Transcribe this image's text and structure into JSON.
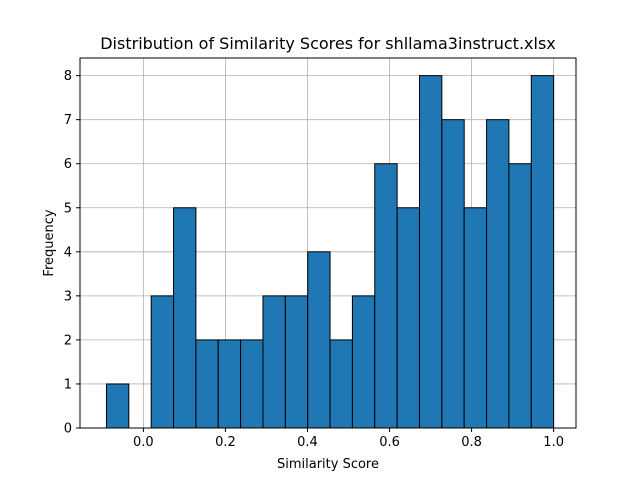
{
  "chart_data": {
    "type": "bar",
    "title": "Distribution of Similarity Scores for shllama3instruct.xlsx",
    "xlabel": "Similarity Score",
    "ylabel": "Frequency",
    "bin_start": -0.09,
    "bin_width": 0.0545,
    "frequencies": [
      1,
      0,
      3,
      5,
      2,
      2,
      2,
      3,
      3,
      4,
      2,
      3,
      6,
      5,
      8,
      7,
      5,
      7,
      6,
      8
    ],
    "xlim": [
      -0.1545,
      1.0545
    ],
    "ylim": [
      0,
      8.4
    ],
    "xticks": [
      0.0,
      0.2,
      0.4,
      0.6,
      0.8,
      1.0
    ],
    "xtick_labels": [
      "0.0",
      "0.2",
      "0.4",
      "0.6",
      "0.8",
      "1.0"
    ],
    "yticks": [
      0,
      1,
      2,
      3,
      4,
      5,
      6,
      7,
      8
    ],
    "ytick_labels": [
      "0",
      "1",
      "2",
      "3",
      "4",
      "5",
      "6",
      "7",
      "8"
    ],
    "grid": true,
    "bar_color": "#1f77b4",
    "edge_color": "#000000",
    "grid_color": "#b0b0b0"
  }
}
